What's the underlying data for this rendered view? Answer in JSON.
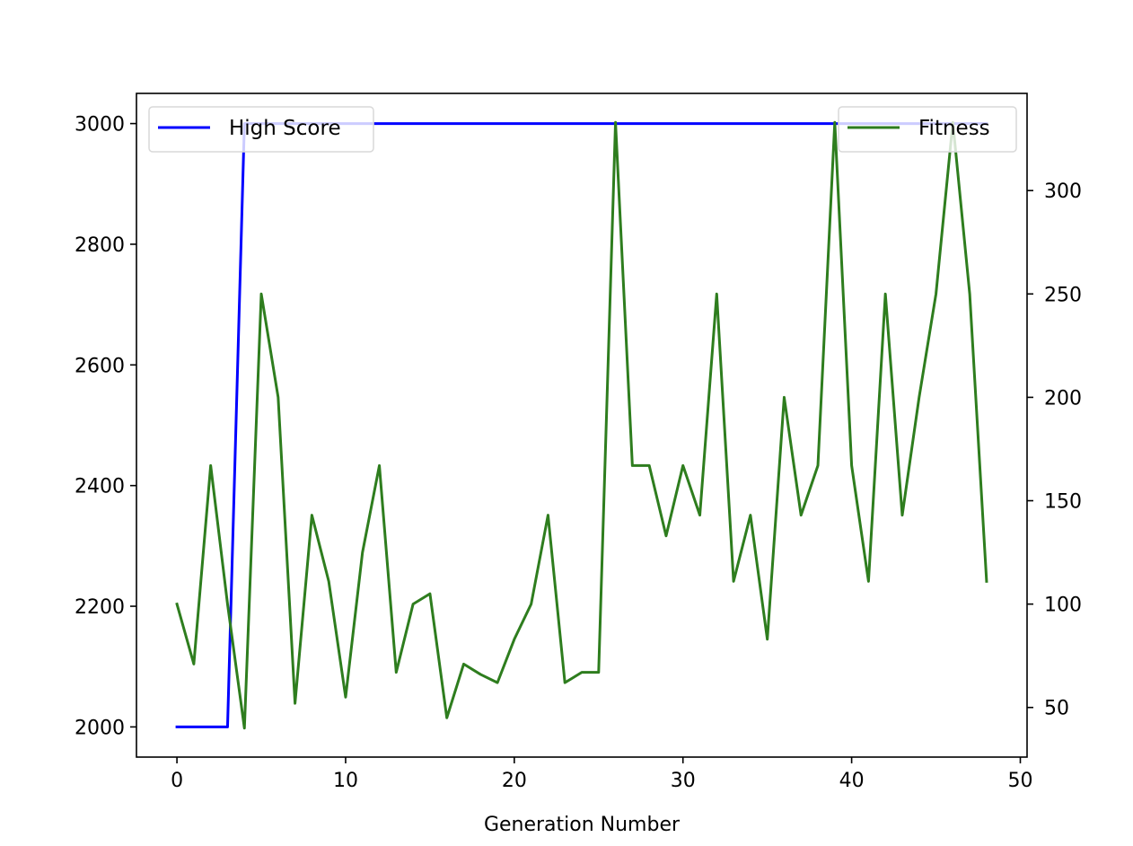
{
  "chart_data": {
    "type": "line",
    "xlabel": "Generation Number",
    "x": [
      0,
      1,
      2,
      3,
      4,
      5,
      6,
      7,
      8,
      9,
      10,
      11,
      12,
      13,
      14,
      15,
      16,
      17,
      18,
      19,
      20,
      21,
      22,
      23,
      24,
      25,
      26,
      27,
      28,
      29,
      30,
      31,
      32,
      33,
      34,
      35,
      36,
      37,
      38,
      39,
      40,
      41,
      42,
      43,
      44,
      45,
      46,
      47,
      48
    ],
    "xlim": [
      -2.4,
      50.4
    ],
    "x_ticks": [
      0,
      10,
      20,
      30,
      40,
      50
    ],
    "y_left": {
      "lim": [
        1950,
        3050
      ],
      "ticks": [
        2000,
        2200,
        2400,
        2600,
        2800,
        3000
      ]
    },
    "y_right": {
      "lim": [
        26,
        347
      ],
      "ticks": [
        50,
        100,
        150,
        200,
        250,
        300
      ]
    },
    "series": [
      {
        "name": "High Score",
        "axis": "left",
        "color": "#0000ff",
        "values": [
          2000,
          2000,
          2000,
          2000,
          3000,
          3000,
          3000,
          3000,
          3000,
          3000,
          3000,
          3000,
          3000,
          3000,
          3000,
          3000,
          3000,
          3000,
          3000,
          3000,
          3000,
          3000,
          3000,
          3000,
          3000,
          3000,
          3000,
          3000,
          3000,
          3000,
          3000,
          3000,
          3000,
          3000,
          3000,
          3000,
          3000,
          3000,
          3000,
          3000,
          3000,
          3000,
          3000,
          3000,
          3000,
          3000,
          3000,
          3000,
          3000
        ]
      },
      {
        "name": "Fitness",
        "axis": "right",
        "color": "#2e7d1e",
        "values": [
          100,
          71,
          167,
          100,
          40,
          250,
          200,
          52,
          143,
          111,
          55,
          125,
          167,
          67,
          100,
          105,
          45,
          71,
          66,
          62,
          83,
          100,
          143,
          62,
          67,
          67,
          333,
          167,
          167,
          133,
          167,
          143,
          250,
          111,
          143,
          83,
          200,
          143,
          167,
          333,
          167,
          111,
          250,
          143,
          200,
          250,
          333,
          250,
          111
        ]
      }
    ],
    "legends": [
      {
        "placement": "upper left",
        "entries": [
          "High Score"
        ]
      },
      {
        "placement": "upper right",
        "entries": [
          "Fitness"
        ]
      }
    ],
    "grid": false
  }
}
